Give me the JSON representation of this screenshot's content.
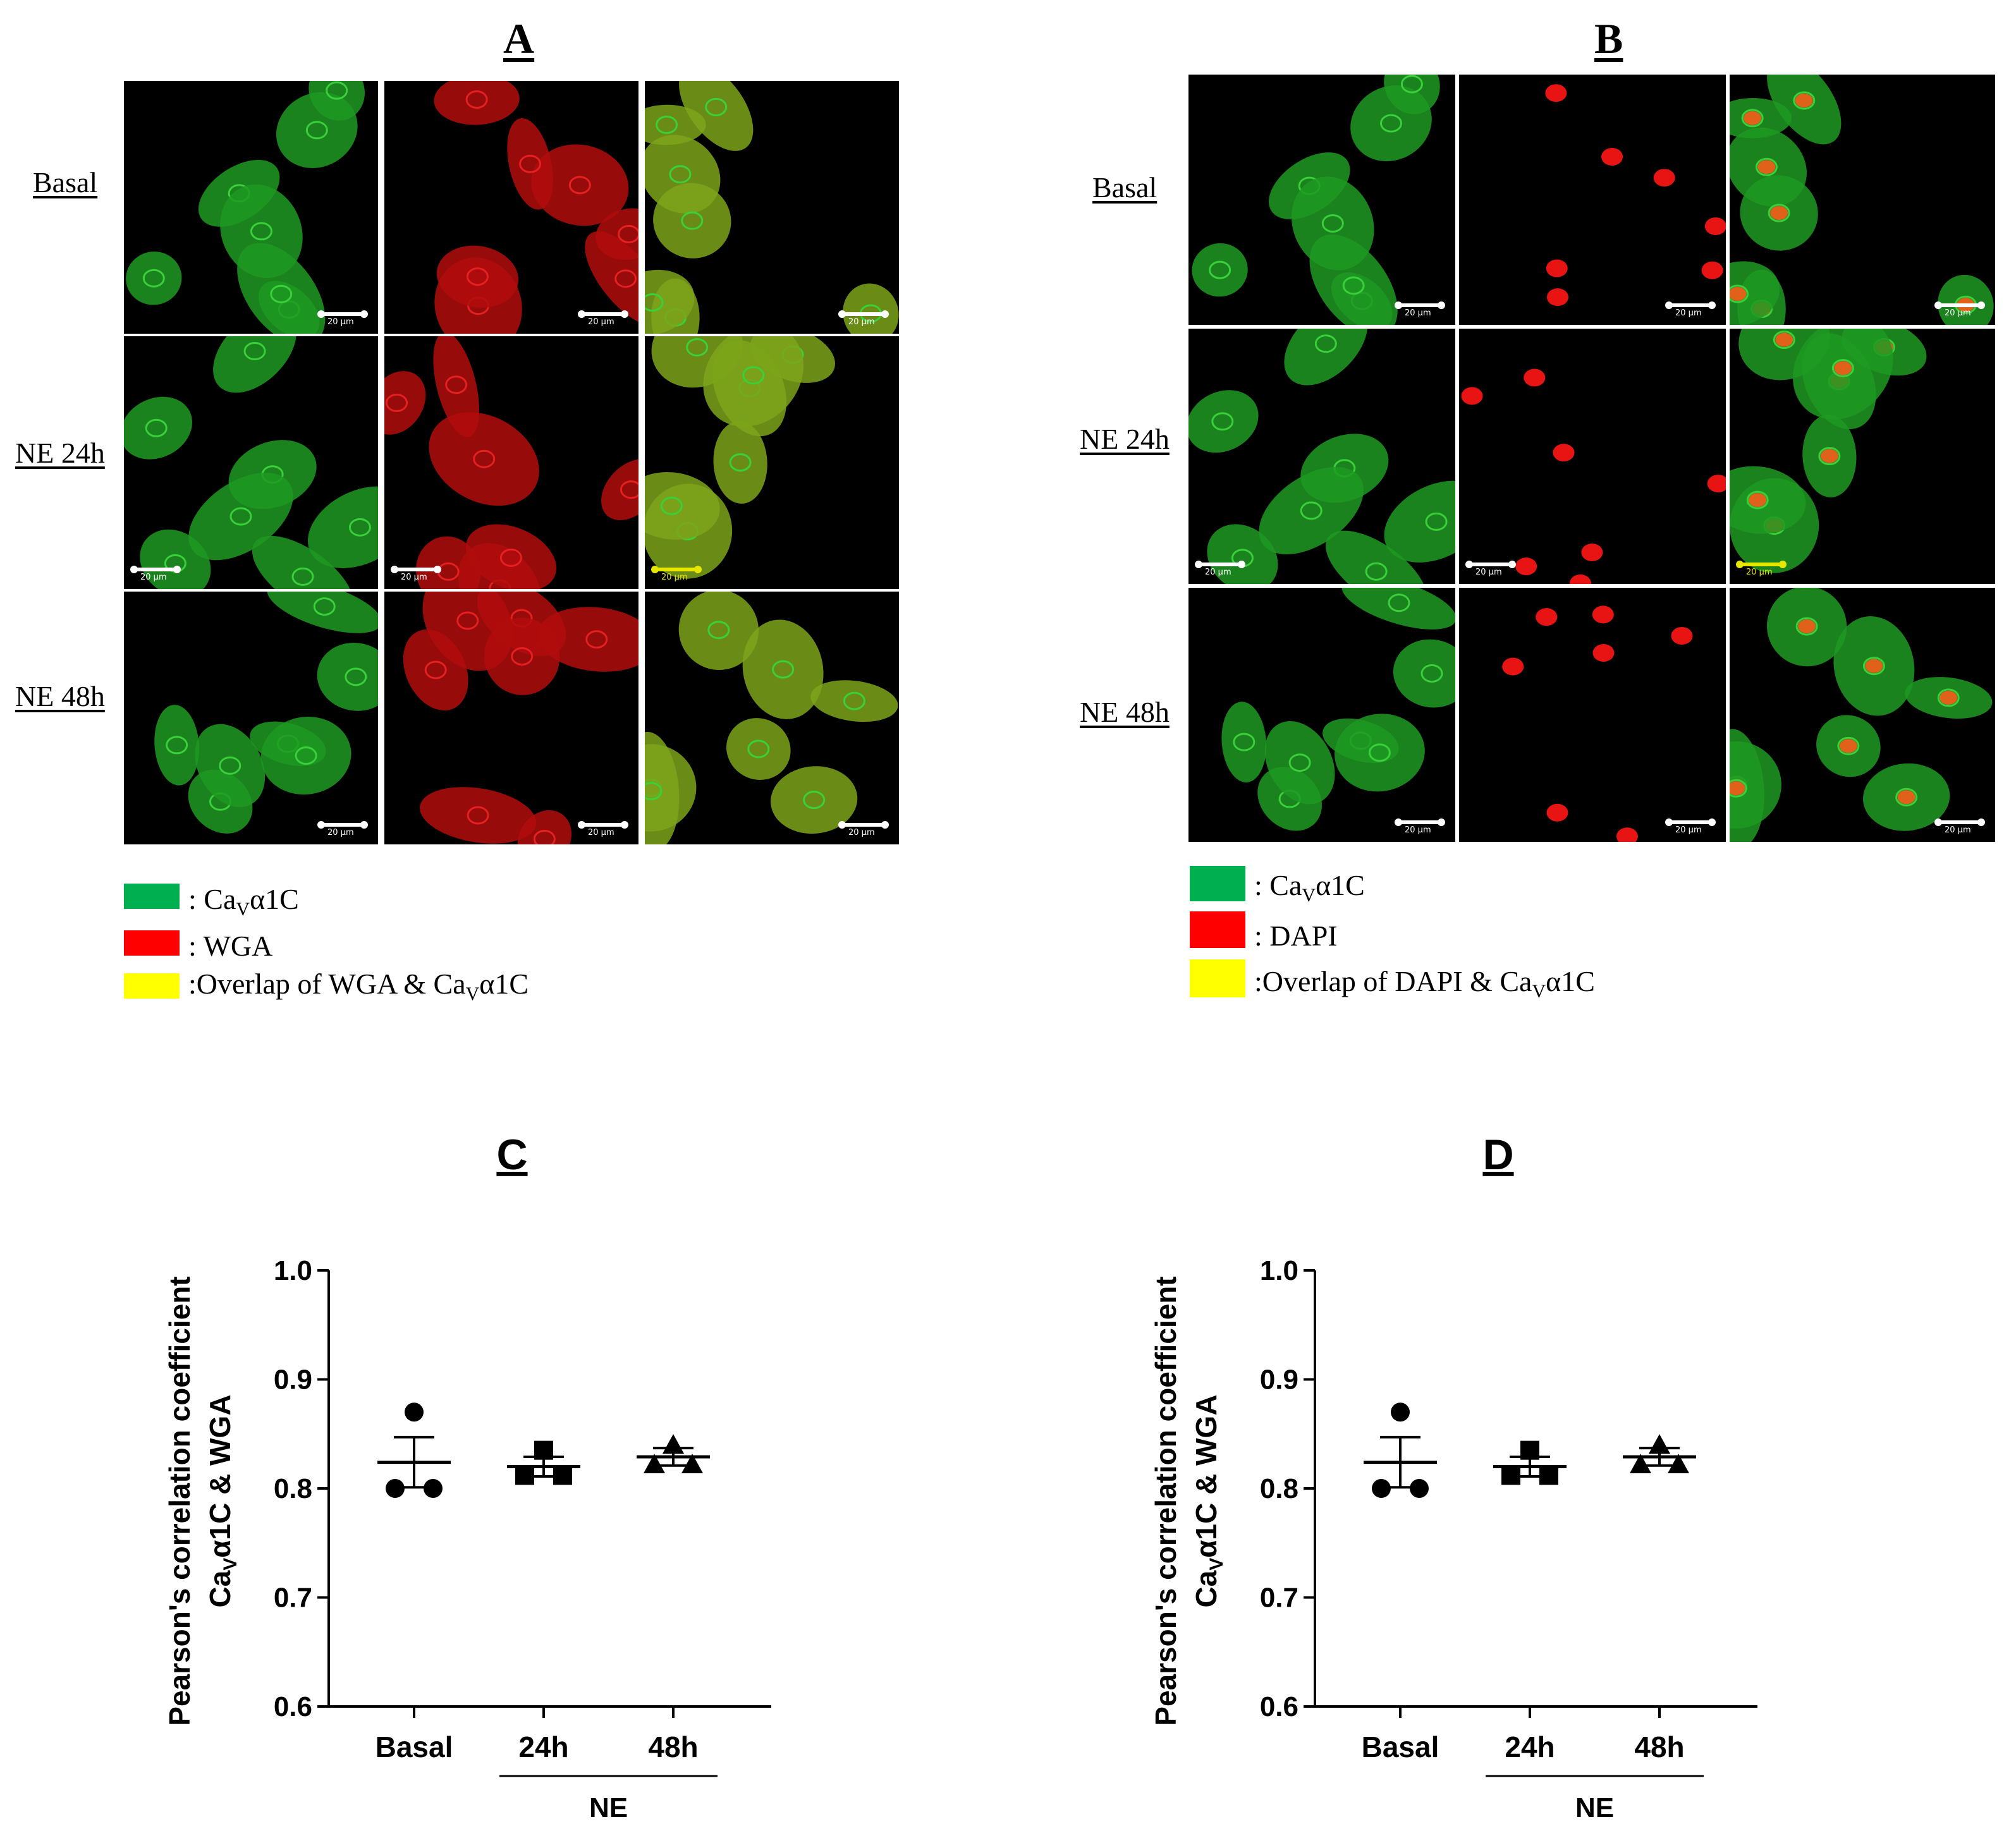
{
  "panels": {
    "A": {
      "letter": "A",
      "rows": [
        "Basal",
        "NE 24h",
        "NE 48h"
      ],
      "scale_bar_label": "20 μm",
      "legend": [
        {
          "color": "#00b050",
          "prefix": ": Ca",
          "sub": "V",
          "suffix": "α1C"
        },
        {
          "color": "#ff0000",
          "prefix": ": WGA",
          "sub": "",
          "suffix": ""
        },
        {
          "color": "#ffff00",
          "prefix": ":Overlap of WGA & Ca",
          "sub": "V",
          "suffix": "α1C"
        }
      ]
    },
    "B": {
      "letter": "B",
      "rows": [
        "Basal",
        "NE 24h",
        "NE 48h"
      ],
      "scale_bar_label": "20 μm",
      "legend": [
        {
          "color": "#00b050",
          "prefix": ": Ca",
          "sub": "V",
          "suffix": "α1C"
        },
        {
          "color": "#ff0000",
          "prefix": ": DAPI",
          "sub": "",
          "suffix": ""
        },
        {
          "color": "#ffff00",
          "prefix": ":Overlap of DAPI & Ca",
          "sub": "V",
          "suffix": "α1C"
        }
      ]
    }
  },
  "chart_data": [
    {
      "panel": "C",
      "type": "scatter",
      "title": "C",
      "ylabel_line1": "Pearson's correlation coefficient",
      "ylabel_line2_prefix": "Ca",
      "ylabel_line2_sub": "V",
      "ylabel_line2_suffix": "α1C & WGA",
      "ylim": [
        0.6,
        1.0
      ],
      "yticks": [
        "0.6",
        "0.7",
        "0.8",
        "0.9",
        "1.0"
      ],
      "categories": [
        "Basal",
        "24h",
        "48h"
      ],
      "group_label": "NE",
      "series": [
        {
          "name": "Basal",
          "marker": "circle",
          "values": [
            0.87,
            0.8,
            0.8
          ],
          "mean": 0.824,
          "sem": 0.023
        },
        {
          "name": "24h",
          "marker": "square",
          "values": [
            0.835,
            0.812,
            0.812
          ],
          "mean": 0.82,
          "sem": 0.009
        },
        {
          "name": "48h",
          "marker": "triangle",
          "values": [
            0.84,
            0.822,
            0.822
          ],
          "mean": 0.829,
          "sem": 0.008
        }
      ]
    },
    {
      "panel": "D",
      "type": "scatter",
      "title": "D",
      "ylabel_line1": "Pearson's correlation coefficient",
      "ylabel_line2_prefix": "Ca",
      "ylabel_line2_sub": "V",
      "ylabel_line2_suffix": "α1C & WGA",
      "ylim": [
        0.6,
        1.0
      ],
      "yticks": [
        "0.6",
        "0.7",
        "0.8",
        "0.9",
        "1.0"
      ],
      "categories": [
        "Basal",
        "24h",
        "48h"
      ],
      "group_label": "NE",
      "series": [
        {
          "name": "Basal",
          "marker": "circle",
          "values": [
            0.87,
            0.8,
            0.8
          ],
          "mean": 0.824,
          "sem": 0.023
        },
        {
          "name": "24h",
          "marker": "square",
          "values": [
            0.835,
            0.812,
            0.812
          ],
          "mean": 0.82,
          "sem": 0.009
        },
        {
          "name": "48h",
          "marker": "triangle",
          "values": [
            0.84,
            0.822,
            0.822
          ],
          "mean": 0.829,
          "sem": 0.008
        }
      ]
    }
  ]
}
